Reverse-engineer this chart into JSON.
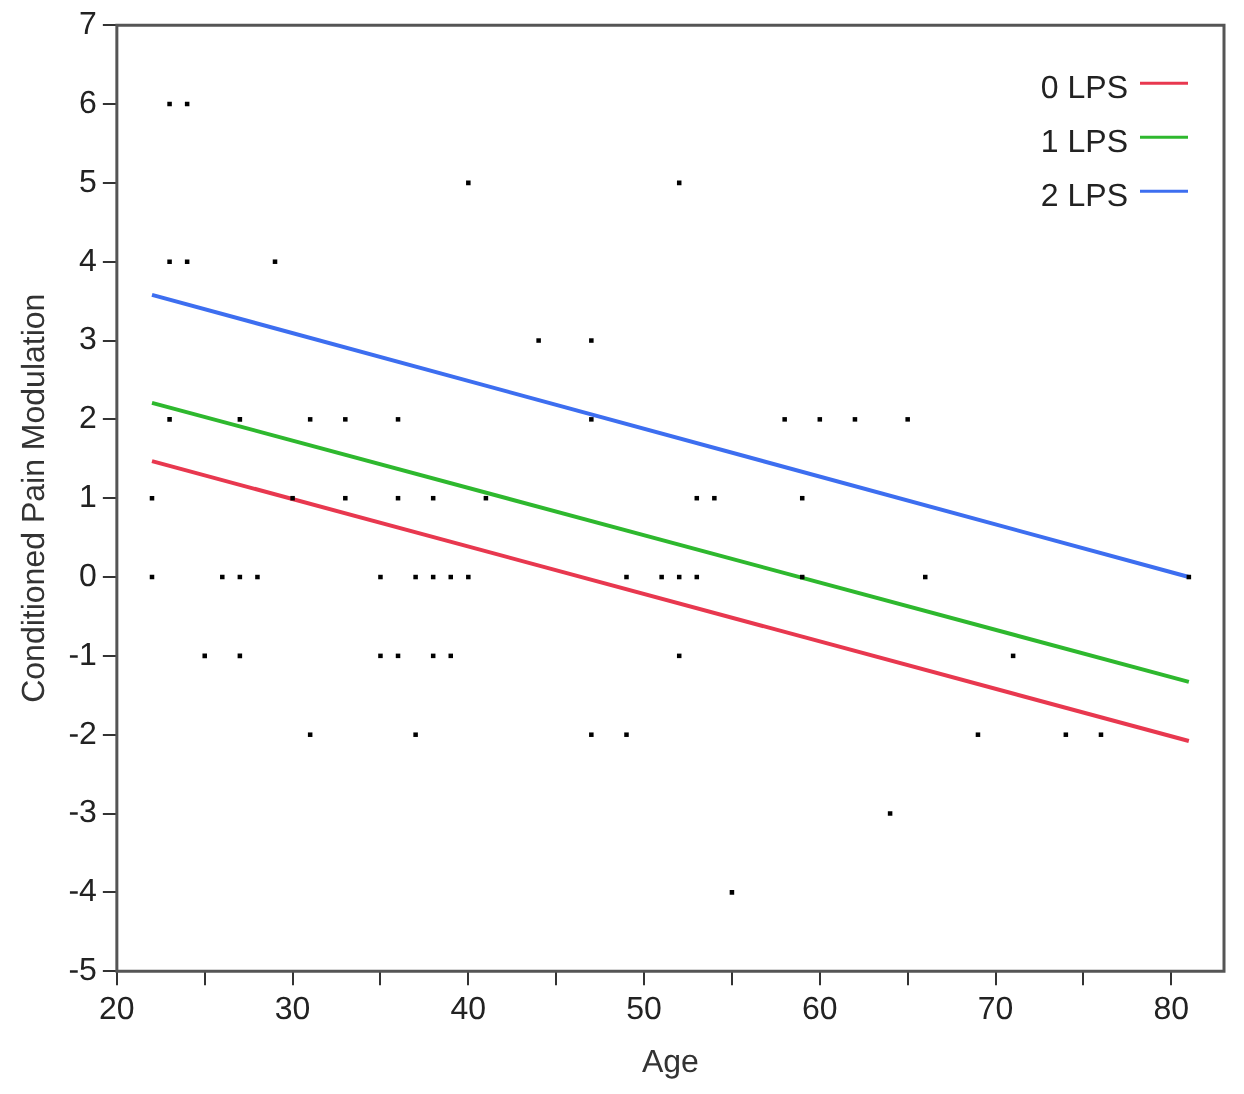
{
  "chart_data": {
    "type": "scatter",
    "xlabel": "Age",
    "ylabel": "Conditioned Pain Modulation",
    "xlim": [
      20,
      83
    ],
    "xticks": [
      20,
      {
        "value": 25,
        "label": null
      },
      30,
      {
        "value": 35,
        "label": null
      },
      40,
      {
        "value": 45,
        "label": null
      },
      50,
      {
        "value": 55,
        "label": null
      },
      60,
      {
        "value": 65,
        "label": null
      },
      70,
      {
        "value": 75,
        "label": null
      },
      80
    ],
    "ylim": [
      -5,
      7
    ],
    "yticks": [
      -5,
      -4,
      -3,
      -2,
      -1,
      0,
      1,
      2,
      3,
      4,
      5,
      6,
      7
    ],
    "grid": false,
    "legend": "top right",
    "marker": "square",
    "series": [
      {
        "type": "scatter",
        "color": "#000000",
        "x": [
          23,
          24,
          40,
          52,
          23,
          24,
          29,
          44,
          47,
          23,
          27,
          31,
          33,
          36,
          47,
          58,
          60,
          62,
          65,
          22,
          30,
          33,
          36,
          38,
          41,
          53,
          54,
          59,
          22,
          26,
          27,
          28,
          35,
          37,
          38,
          39,
          40,
          49,
          51,
          52,
          53,
          59,
          66,
          81,
          25,
          27,
          35,
          36,
          38,
          39,
          52,
          71,
          31,
          37,
          47,
          49,
          69,
          74,
          76,
          64,
          55
        ],
        "values": [
          6,
          6,
          5,
          5,
          4,
          4,
          4,
          3,
          3,
          2,
          2,
          2,
          2,
          2,
          2,
          2,
          2,
          2,
          2,
          1,
          1,
          1,
          1,
          1,
          1,
          1,
          1,
          1,
          0,
          0,
          0,
          0,
          0,
          0,
          0,
          0,
          0,
          0,
          0,
          0,
          0,
          0,
          0,
          0,
          -1,
          -1,
          -1,
          -1,
          -1,
          -1,
          -1,
          -1,
          -2,
          -2,
          -2,
          -2,
          -2,
          -2,
          -2,
          -3,
          -4
        ]
      },
      {
        "type": "line",
        "name": "0 LPS",
        "color": "#e8384f",
        "x": [
          22,
          81
        ],
        "values": [
          1.47,
          -2.08
        ],
        "marker": "none",
        "line_style": "solid"
      },
      {
        "type": "line",
        "name": "1 LPS",
        "color": "#2eb82e",
        "x": [
          22,
          81
        ],
        "values": [
          2.21,
          -1.33
        ],
        "marker": "none",
        "line_style": "solid"
      },
      {
        "type": "line",
        "name": "2 LPS",
        "color": "#3d6ef0",
        "x": [
          22,
          81
        ],
        "values": [
          3.58,
          0
        ],
        "marker": "none",
        "line_style": "solid"
      }
    ]
  }
}
